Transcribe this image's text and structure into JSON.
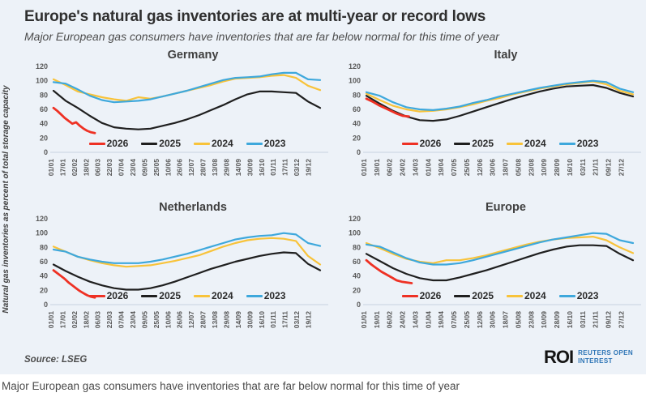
{
  "header": {
    "title": "Europe's natural gas inventories are at multi-year or record lows",
    "subtitle": "Major European gas consumers have inventories that are far below normal for this time of year"
  },
  "y_axis_label": "Natural gas inventories as percent of total storage capacity",
  "footer": {
    "source_label": "Source:",
    "source_value": "LSEG",
    "logo": {
      "abbr": "ROI",
      "line1": "REUTERS OPEN",
      "line2": "INTEREST"
    }
  },
  "caption": "Major European gas consumers have inventories that are far below normal for this time of year",
  "colors": {
    "card_background": "#edf2f8",
    "series_2026": "#ee3124",
    "series_2025": "#1f1f1f",
    "series_2024": "#f8c33a",
    "series_2023": "#3ea8dc",
    "logo_blue": "#2e75b6",
    "axis_text": "#595959"
  },
  "legend": [
    {
      "label": "2026",
      "color": "#ee3124"
    },
    {
      "label": "2025",
      "color": "#1f1f1f"
    },
    {
      "label": "2024",
      "color": "#f8c33a"
    },
    {
      "label": "2023",
      "color": "#3ea8dc"
    }
  ],
  "chart_data": [
    {
      "type": "line",
      "title": "Germany",
      "ylabel": "Natural gas inventories as percent of total storage capacity",
      "ylim": [
        0,
        120
      ],
      "yticks": [
        0,
        20,
        40,
        60,
        80,
        100,
        120
      ],
      "grid": false,
      "legend_position": "bottom-center-inside",
      "x_tick_labels": [
        "01/01",
        "17/01",
        "02/02",
        "18/02",
        "06/03",
        "22/03",
        "07/04",
        "23/04",
        "09/05",
        "25/05",
        "10/06",
        "26/06",
        "12/07",
        "28/07",
        "13/08",
        "29/08",
        "14/09",
        "30/09",
        "16/10",
        "01/11",
        "17/11",
        "03/12",
        "19/12"
      ],
      "series": [
        {
          "name": "2025",
          "color": "#1f1f1f",
          "z": 1,
          "span": [
            0,
            1
          ],
          "values": [
            86,
            72,
            62,
            51,
            41,
            35,
            33,
            32,
            33,
            37,
            41,
            46,
            52,
            59,
            66,
            74,
            81,
            85,
            85,
            84,
            83,
            71,
            62
          ]
        },
        {
          "name": "2024",
          "color": "#f8c33a",
          "z": 2,
          "span": [
            0,
            1
          ],
          "values": [
            102,
            94,
            85,
            81,
            77,
            74,
            72,
            77,
            75,
            78,
            82,
            86,
            90,
            94,
            99,
            103,
            104,
            105,
            107,
            108,
            104,
            93,
            87
          ]
        },
        {
          "name": "2023",
          "color": "#3ea8dc",
          "z": 3,
          "span": [
            0,
            1
          ],
          "values": [
            98,
            96,
            88,
            79,
            73,
            70,
            71,
            72,
            74,
            78,
            82,
            86,
            91,
            96,
            101,
            104,
            105,
            106,
            109,
            111,
            111,
            102,
            101
          ]
        },
        {
          "name": "2026",
          "color": "#ee3124",
          "z": 4,
          "span": [
            0,
            0.155
          ],
          "values": [
            62,
            58,
            53,
            48,
            44,
            40,
            42,
            37,
            33,
            30,
            28,
            27
          ]
        }
      ]
    },
    {
      "type": "line",
      "title": "Italy",
      "ylim": [
        0,
        120
      ],
      "yticks": [
        0,
        20,
        40,
        60,
        80,
        100,
        120
      ],
      "grid": false,
      "legend_position": "bottom-center-inside",
      "x_tick_labels": [
        "01/01",
        "19/01",
        "06/02",
        "24/02",
        "14/03",
        "01/04",
        "19/04",
        "07/05",
        "25/05",
        "12/06",
        "30/06",
        "18/07",
        "05/08",
        "23/08",
        "10/09",
        "28/09",
        "16/10",
        "03/11",
        "21/11",
        "09/12",
        "27/12"
      ],
      "series": [
        {
          "name": "2025",
          "color": "#1f1f1f",
          "z": 1,
          "span": [
            0,
            1
          ],
          "values": [
            79,
            68,
            58,
            50,
            45,
            44,
            46,
            51,
            57,
            63,
            69,
            75,
            80,
            85,
            89,
            92,
            93,
            94,
            90,
            83,
            78
          ]
        },
        {
          "name": "2024",
          "color": "#f8c33a",
          "z": 2,
          "span": [
            0,
            1
          ],
          "values": [
            82,
            73,
            65,
            60,
            57,
            58,
            60,
            63,
            67,
            72,
            76,
            81,
            85,
            89,
            92,
            95,
            97,
            99,
            95,
            86,
            81
          ]
        },
        {
          "name": "2023",
          "color": "#3ea8dc",
          "z": 3,
          "span": [
            0,
            1
          ],
          "values": [
            84,
            79,
            70,
            63,
            60,
            59,
            61,
            64,
            69,
            73,
            78,
            82,
            86,
            90,
            93,
            96,
            98,
            100,
            98,
            89,
            84
          ]
        },
        {
          "name": "2026",
          "color": "#ee3124",
          "z": 4,
          "span": [
            0,
            0.16
          ],
          "values": [
            75,
            71,
            66,
            62,
            58,
            54,
            51,
            50
          ]
        }
      ]
    },
    {
      "type": "line",
      "title": "Netherlands",
      "ylim": [
        0,
        120
      ],
      "yticks": [
        0,
        20,
        40,
        60,
        80,
        100,
        120
      ],
      "grid": false,
      "legend_position": "bottom-center-inside",
      "x_tick_labels": [
        "01/01",
        "17/01",
        "02/02",
        "18/02",
        "06/03",
        "22/03",
        "07/04",
        "23/04",
        "09/05",
        "25/05",
        "10/06",
        "26/06",
        "12/07",
        "28/07",
        "13/08",
        "29/08",
        "14/09",
        "30/09",
        "16/10",
        "01/11",
        "17/11",
        "03/12",
        "19/12"
      ],
      "series": [
        {
          "name": "2025",
          "color": "#1f1f1f",
          "z": 1,
          "span": [
            0,
            1
          ],
          "values": [
            56,
            47,
            39,
            32,
            27,
            23,
            21,
            21,
            23,
            27,
            32,
            38,
            44,
            50,
            55,
            60,
            64,
            68,
            71,
            73,
            72,
            57,
            48
          ]
        },
        {
          "name": "2024",
          "color": "#f8c33a",
          "z": 2,
          "span": [
            0,
            1
          ],
          "values": [
            81,
            74,
            67,
            62,
            58,
            55,
            53,
            54,
            55,
            58,
            61,
            65,
            69,
            75,
            81,
            86,
            90,
            92,
            93,
            92,
            89,
            68,
            56
          ]
        },
        {
          "name": "2023",
          "color": "#3ea8dc",
          "z": 3,
          "span": [
            0,
            1
          ],
          "values": [
            77,
            74,
            67,
            63,
            60,
            58,
            58,
            58,
            60,
            63,
            67,
            71,
            76,
            81,
            86,
            91,
            94,
            96,
            97,
            100,
            98,
            86,
            82
          ]
        },
        {
          "name": "2026",
          "color": "#ee3124",
          "z": 4,
          "span": [
            0,
            0.155
          ],
          "values": [
            48,
            44,
            40,
            36,
            31,
            27,
            23,
            19,
            16,
            13,
            11,
            10
          ]
        }
      ]
    },
    {
      "type": "line",
      "title": "Europe",
      "ylim": [
        0,
        120
      ],
      "yticks": [
        0,
        20,
        40,
        60,
        80,
        100,
        120
      ],
      "grid": false,
      "legend_position": "bottom-center-inside",
      "x_tick_labels": [
        "01/01",
        "19/01",
        "06/02",
        "24/02",
        "14/03",
        "01/04",
        "19/04",
        "07/05",
        "25/05",
        "12/06",
        "30/06",
        "18/07",
        "05/08",
        "23/08",
        "10/09",
        "28/09",
        "16/10",
        "03/11",
        "21/11",
        "09/12",
        "27/12"
      ],
      "series": [
        {
          "name": "2025",
          "color": "#1f1f1f",
          "z": 1,
          "span": [
            0,
            1
          ],
          "values": [
            71,
            61,
            51,
            43,
            37,
            34,
            34,
            38,
            43,
            48,
            54,
            60,
            66,
            72,
            77,
            81,
            83,
            83,
            82,
            71,
            62
          ]
        },
        {
          "name": "2024",
          "color": "#f8c33a",
          "z": 2,
          "span": [
            0,
            1
          ],
          "values": [
            86,
            79,
            71,
            64,
            60,
            58,
            62,
            62,
            65,
            69,
            74,
            79,
            84,
            88,
            91,
            93,
            94,
            95,
            90,
            80,
            72
          ]
        },
        {
          "name": "2023",
          "color": "#3ea8dc",
          "z": 3,
          "span": [
            0,
            1
          ],
          "values": [
            84,
            81,
            73,
            65,
            59,
            56,
            56,
            58,
            62,
            67,
            72,
            77,
            82,
            87,
            91,
            94,
            97,
            100,
            99,
            90,
            86
          ]
        },
        {
          "name": "2026",
          "color": "#ee3124",
          "z": 4,
          "span": [
            0,
            0.17
          ],
          "values": [
            62,
            56,
            51,
            46,
            42,
            38,
            34,
            32,
            31,
            30
          ]
        }
      ]
    }
  ]
}
